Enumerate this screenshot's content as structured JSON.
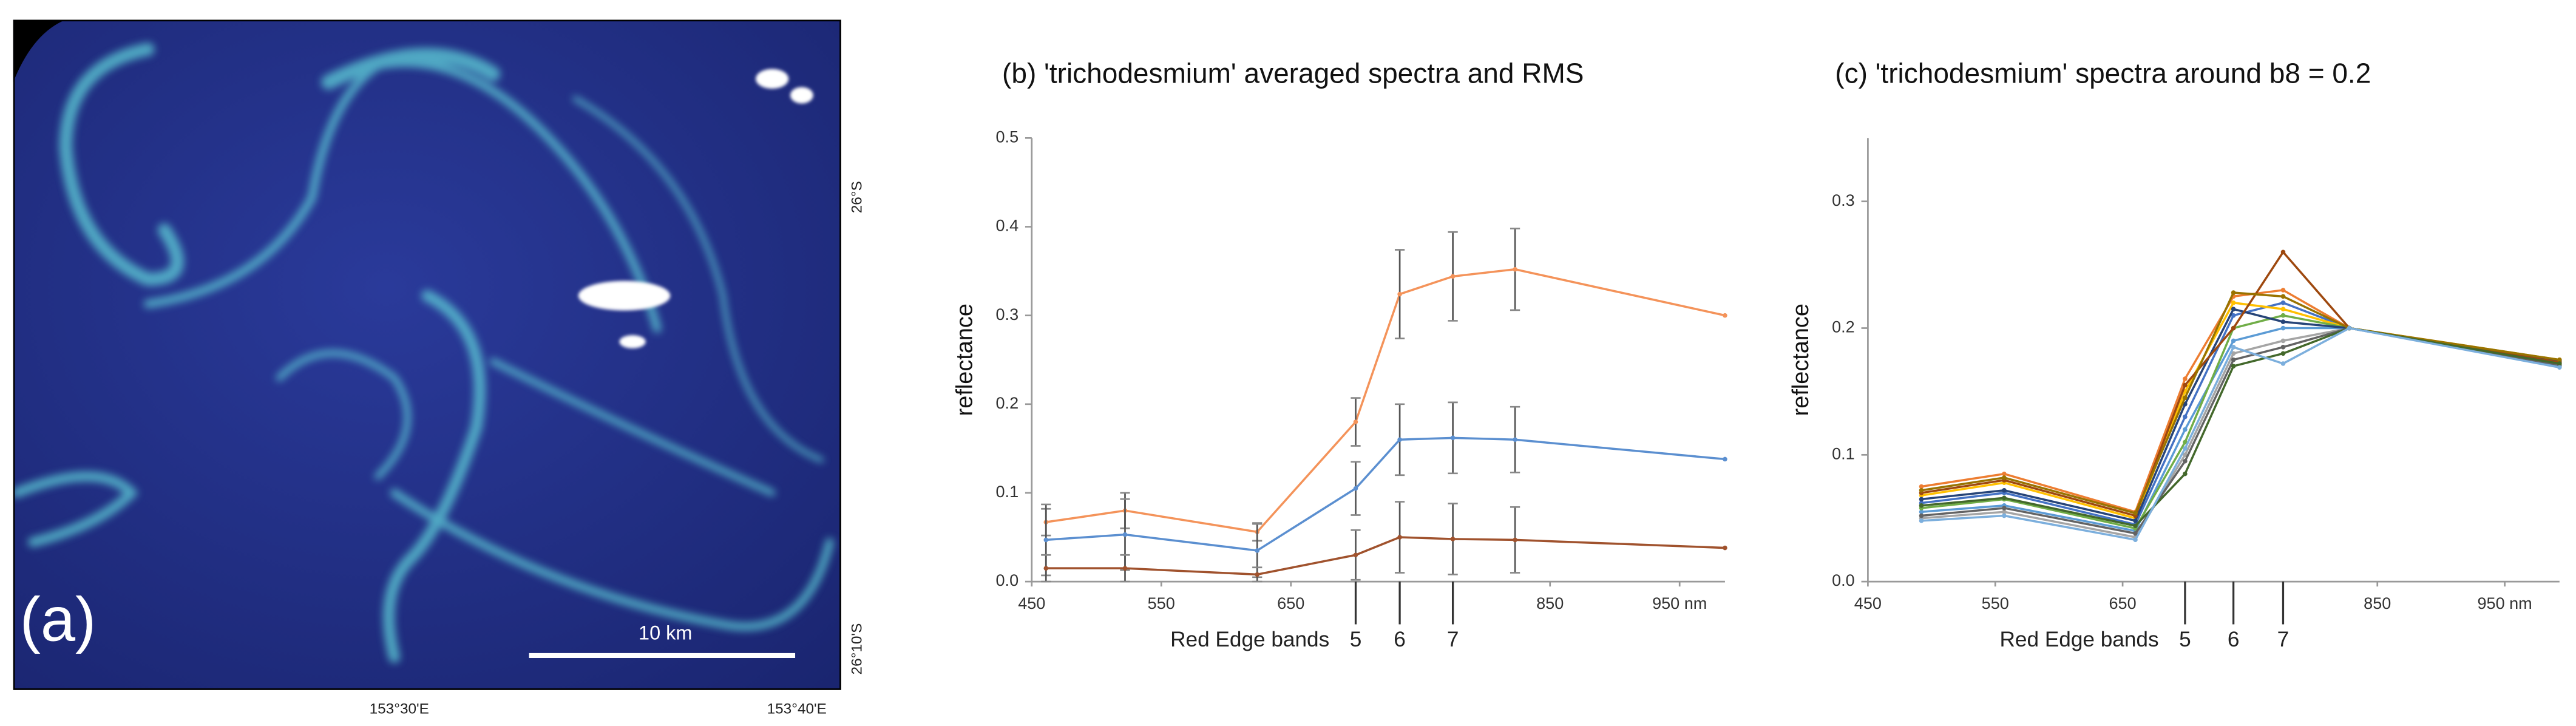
{
  "image_panel": {
    "label": "(a)",
    "scale_bar": "10 km",
    "lon_labels": [
      "153°30'E",
      "153°40'E"
    ],
    "lat_labels": [
      "26°S",
      "26°10'S"
    ]
  },
  "chart_data": [
    {
      "type": "line",
      "title": "(b) 'trichodesmium' averaged spectra and RMS",
      "ylabel": "reflectance",
      "x": [
        461,
        522,
        624,
        700,
        734,
        775,
        823,
        985
      ],
      "xlim": [
        450,
        985
      ],
      "xticks": [
        450,
        550,
        650,
        850,
        {
          "value": 950,
          "label": "950 nm"
        }
      ],
      "ylim": [
        0,
        0.5
      ],
      "yticks": [
        {
          "value": 0,
          "label": "0.0"
        },
        0.1,
        0.2,
        0.3,
        0.4,
        0.5
      ],
      "red_edge": {
        "label": "Red Edge bands",
        "bands": [
          {
            "value": 700,
            "label": "5"
          },
          {
            "value": 734,
            "label": "6"
          },
          {
            "value": 775,
            "label": "7"
          }
        ]
      },
      "series": [
        {
          "color": "#f4935a",
          "values": [
            0.067,
            0.08,
            0.056,
            0.18,
            0.324,
            0.344,
            0.352,
            0.3
          ],
          "errors": [
            0.015,
            0.02,
            0.01,
            0.027,
            0.05,
            0.05,
            0.046,
            null
          ]
        },
        {
          "color": "#5b8fd0",
          "values": [
            0.047,
            0.053,
            0.035,
            0.105,
            0.16,
            0.162,
            0.16,
            0.138
          ],
          "errors": [
            0.04,
            0.04,
            0.03,
            0.03,
            0.04,
            0.04,
            0.037,
            null
          ]
        },
        {
          "color": "#a0522d",
          "values": [
            0.015,
            0.015,
            0.008,
            0.03,
            0.05,
            0.048,
            0.047,
            0.038
          ],
          "errors": [
            0.015,
            0.015,
            0.008,
            0.028,
            0.04,
            0.04,
            0.037,
            null
          ]
        }
      ]
    },
    {
      "type": "line",
      "title": "(c) 'trichodesmium' spectra around b8 = 0.2",
      "ylabel": "reflectance",
      "x": [
        492,
        557,
        660,
        699,
        737,
        776,
        828,
        993
      ],
      "xlim": [
        450,
        993
      ],
      "xticks": [
        450,
        550,
        650,
        850,
        {
          "value": 950,
          "label": "950 nm"
        }
      ],
      "ylim": [
        0,
        0.35
      ],
      "yticks": [
        {
          "value": 0,
          "label": "0.0"
        },
        0.1,
        0.2,
        0.3
      ],
      "red_edge": {
        "label": "Red Edge bands",
        "bands": [
          {
            "value": 699,
            "label": "5"
          },
          {
            "value": 737,
            "label": "6"
          },
          {
            "value": 776,
            "label": "7"
          }
        ]
      },
      "series": [
        {
          "color": "#4472c4",
          "values": [
            0.062,
            0.07,
            0.045,
            0.13,
            0.21,
            0.22,
            0.2,
            0.173
          ]
        },
        {
          "color": "#ed7d31",
          "values": [
            0.075,
            0.085,
            0.055,
            0.16,
            0.225,
            0.23,
            0.2,
            0.172
          ]
        },
        {
          "color": "#a5a5a5",
          "values": [
            0.05,
            0.055,
            0.035,
            0.1,
            0.18,
            0.19,
            0.2,
            0.17
          ]
        },
        {
          "color": "#ffc000",
          "values": [
            0.068,
            0.078,
            0.05,
            0.15,
            0.22,
            0.215,
            0.2,
            0.175
          ]
        },
        {
          "color": "#5b9bd5",
          "values": [
            0.055,
            0.06,
            0.04,
            0.12,
            0.19,
            0.2,
            0.2,
            0.17
          ]
        },
        {
          "color": "#70ad47",
          "values": [
            0.058,
            0.065,
            0.042,
            0.11,
            0.2,
            0.21,
            0.2,
            0.172
          ]
        },
        {
          "color": "#264478",
          "values": [
            0.065,
            0.072,
            0.048,
            0.14,
            0.215,
            0.205,
            0.2,
            0.174
          ]
        },
        {
          "color": "#9e480e",
          "values": [
            0.07,
            0.08,
            0.052,
            0.155,
            0.2,
            0.26,
            0.2,
            0.173
          ]
        },
        {
          "color": "#636363",
          "values": [
            0.052,
            0.058,
            0.038,
            0.095,
            0.175,
            0.185,
            0.2,
            0.171
          ]
        },
        {
          "color": "#997300",
          "values": [
            0.072,
            0.082,
            0.054,
            0.145,
            0.228,
            0.225,
            0.2,
            0.175
          ]
        },
        {
          "color": "#43682b",
          "values": [
            0.06,
            0.066,
            0.044,
            0.085,
            0.17,
            0.18,
            0.2,
            0.172
          ]
        },
        {
          "color": "#7cafdd",
          "values": [
            0.048,
            0.052,
            0.033,
            0.105,
            0.185,
            0.172,
            0.2,
            0.169
          ]
        }
      ]
    }
  ]
}
